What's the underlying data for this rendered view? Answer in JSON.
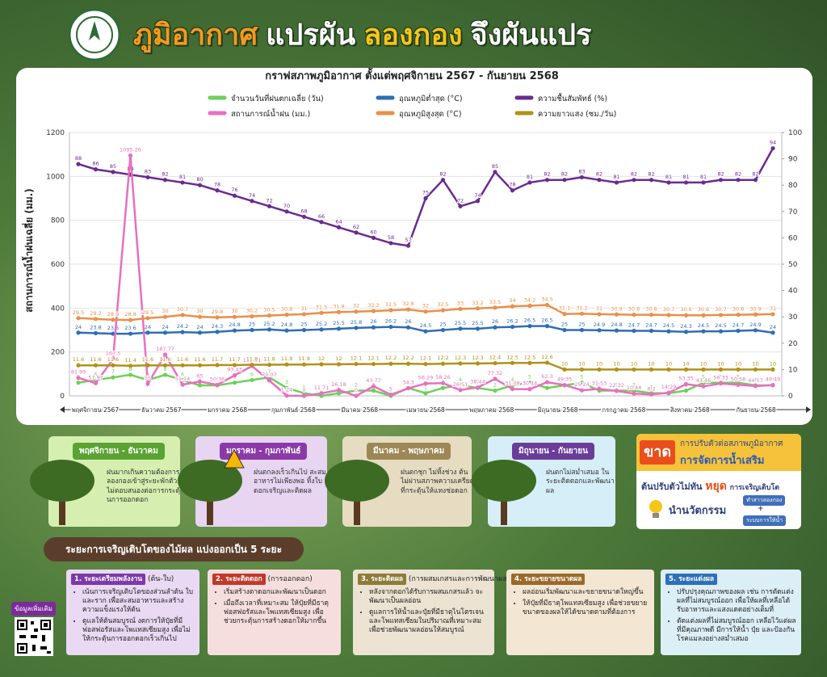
{
  "header": {
    "title_parts": [
      "ภูมิอากาศ",
      "แปรผัน",
      "ลองกอง",
      "จึงผันแปร"
    ]
  },
  "chart_data": {
    "type": "line",
    "title": "กราฟสภาพภูมิอากาศ ตั้งแต่พฤศจิกายน 2567 - กันยายน 2568",
    "ylabel": "สถานการณ์น้ำฝนเฉลี่ย (มม.)",
    "ylim": [
      0,
      1200
    ],
    "yticks": [
      0,
      200,
      400,
      600,
      800,
      1000,
      1200
    ],
    "y2lim": [
      0,
      100
    ],
    "y2ticks": [
      0,
      10,
      20,
      30,
      40,
      50,
      60,
      70,
      80,
      90,
      100
    ],
    "grid": true,
    "months": [
      "พฤศจิกายน 2567",
      "ธันวาคม 2567",
      "มกราคม 2568",
      "กุมภาพันธ์ 2568",
      "มีนาคม 2568",
      "เมษายน 2568",
      "พฤษภาคม 2568",
      "มิถุนายน 2568",
      "กรกฎาคม 2568",
      "สิงหาคม 2568",
      "กันยายน 2568"
    ],
    "series": [
      {
        "name": "จำนวนวันที่ฝนตกเฉลี่ย (วัน)",
        "color": "#6fcf5a",
        "axis": "y2",
        "values": [
          5,
          6,
          7,
          8,
          6,
          8,
          6,
          4,
          4,
          5,
          6,
          7,
          3,
          1,
          0,
          1,
          2,
          2,
          0,
          3,
          1,
          3,
          4,
          3,
          2,
          4,
          5,
          3,
          4,
          5,
          2,
          2,
          2,
          1,
          1,
          2,
          5,
          5,
          5,
          4,
          4
        ]
      },
      {
        "name": "อุณหภูมิต่ำสุด (°C)",
        "color": "#2f6db5",
        "axis": "y2",
        "values": [
          24,
          23.8,
          23.6,
          23.6,
          24,
          24,
          24.2,
          24,
          24.3,
          24.8,
          25,
          25.2,
          24.8,
          25,
          25.2,
          25.5,
          25.8,
          26,
          26.2,
          26,
          24.5,
          25,
          25.5,
          25.5,
          26,
          26.2,
          26.5,
          26.5,
          25,
          25,
          24.9,
          24.8,
          24.7,
          24.7,
          24.5,
          24.3,
          24.5,
          24.5,
          24.7,
          24.9,
          24
        ]
      },
      {
        "name": "ความชื้นสัมพัทธ์ (%)",
        "color": "#6a2b8f",
        "axis": "y2",
        "values": [
          88,
          86,
          85,
          84,
          83,
          82,
          81,
          80,
          78,
          76,
          74,
          72,
          70,
          68,
          66,
          64,
          62,
          60,
          58,
          57,
          75,
          82,
          72,
          74,
          85,
          78,
          81,
          82,
          82,
          83,
          82,
          81,
          82,
          82,
          81,
          81,
          81,
          82,
          82,
          82,
          94
        ]
      },
      {
        "name": "สถานการณ์น้ำฝน (มม.)",
        "color": "#e86fc0",
        "axis": "y",
        "values": [
          81.99,
          57.97,
          167.5,
          1095.26,
          55,
          187.77,
          51.14,
          65,
          50.36,
          93.43,
          135.81,
          70.07,
          1.24,
          0,
          11.71,
          26.18,
          0,
          43.77,
          5,
          34.3,
          56.29,
          58.26,
          26.51,
          38.44,
          77.32,
          31.08,
          30.44,
          62.3,
          49.35,
          25.24,
          31.53,
          22.32,
          10.44,
          6.2,
          14.29,
          53.35,
          43.46,
          56.33,
          50.58,
          44.57,
          49.49
        ]
      },
      {
        "name": "อุณหภูมิสูงสุด (°C)",
        "color": "#e8904a",
        "axis": "y2",
        "values": [
          29.5,
          29.2,
          28.9,
          28.8,
          29.5,
          30,
          30.7,
          30,
          29.8,
          30,
          30.2,
          30.5,
          30.8,
          31,
          31.5,
          31.8,
          32,
          32.2,
          32.5,
          32.8,
          32,
          32.5,
          33,
          33.2,
          33.5,
          34,
          34.2,
          34.5,
          31.1,
          31.2,
          31,
          30.9,
          30.8,
          30.8,
          30.7,
          30.6,
          30.6,
          30.7,
          30.8,
          30.9,
          31
        ]
      },
      {
        "name": "ความยาวแสง (ชม./วัน)",
        "color": "#b0921a",
        "axis": "y2",
        "values": [
          11.6,
          11.6,
          11.6,
          11.4,
          11.6,
          11.6,
          11.6,
          11.6,
          11.7,
          11.7,
          11.8,
          11.8,
          11.9,
          11.9,
          12,
          12,
          12.1,
          12.1,
          12.2,
          12.2,
          12.1,
          12.2,
          12.3,
          12.3,
          12.4,
          12.5,
          12.5,
          12.6,
          10,
          10,
          10,
          10,
          10,
          10,
          10,
          10,
          10,
          10,
          10,
          10,
          10
        ]
      }
    ]
  },
  "seasons": [
    {
      "title": "พฤศจิกายน - ธันวาคม",
      "text": "ฝนมากเกินความต้องการ ลองกองเข้าสู่ระยะพักตัว ไม่ตอบสนองต่อการกระตุ้นการออกดอก"
    },
    {
      "title": "มกราคม - กุมภาพันธ์",
      "text": "ฝนตกลงเร็วเกินไป สะสมอาหารไม่เพียงพอ ทิ้งใบดอกเจริญและติดผล"
    },
    {
      "title": "มีนาคม - พฤษภาคม",
      "text": "ฝนตกชุก ไม่ทิ้งช่วง ต้นไม่ผ่านสภาพความเครียดที่กระตุ้นให้แทงช่อดอก"
    },
    {
      "title": "มิถุนายน - กันยายน",
      "text": "ฝนตกไม่สม่ำเสมอ ในระยะติดดอกและพัฒนาผล"
    }
  ],
  "side_box": {
    "lack": "ขาด",
    "line1": "การปรับตัวต่อสภาพภูมิอากาศ",
    "line2": "การจัดการน้ำเสริม",
    "line3a": "ต้นปรับตัวไม่ทัน",
    "stop": "หยุด",
    "line3b": "การเจริญเติบโต",
    "innovation": "นำนวัตกรรม",
    "tag1": "ทำสาวลองกอง",
    "plus": "+",
    "tag2": "ระบบการให้น้ำ"
  },
  "stages_title": "ระยะการเจริญเติบโตของไม้ผล แบ่งออกเป็น 5 ระยะ",
  "more_info": "ข้อมูลเพิ่มเติม",
  "stages": [
    {
      "title": "1. ระยะเตรียมพลังงาน",
      "sub": "(ต้น-ใบ)",
      "bullets": [
        "เน้นการเจริญเติบโตของส่วนลำต้น ใบ และราก เพื่อสะสมอาหารและสร้างความแข็งแรงให้ต้น",
        "ดูแลให้ต้นสมบูรณ์ งดการให้ปุ๋ยที่มีฟอสฟอรัสและโพแทสเซียมสูง เพื่อไม่ให้กระตุ้นการออกดอกเร็วเกินไป"
      ]
    },
    {
      "title": "2. ระยะติดดอก",
      "sub": "(การออกดอก)",
      "bullets": [
        "เริ่มสร้างตาดอกและพัฒนาเป็นดอก",
        "เมื่อถึงเวลาที่เหมาะสม ให้ปุ๋ยที่มีธาตุฟอสฟอรัสและโพแทสเซียมสูง เพื่อช่วยกระตุ้นการสร้างดอกให้มากขึ้น"
      ]
    },
    {
      "title": "3. ระยะติดผล",
      "sub": "(การผสมเกสรและการพัฒนาผลอ่อน)",
      "bullets": [
        "หลังจากดอกได้รับการผสมเกสรแล้ว จะพัฒนาเป็นผลอ่อน",
        "ดูแลการให้น้ำและปุ๋ยที่มีธาตุไนโตรเจนและโพแทสเซียมในปริมาณที่เหมาะสม เพื่อช่วยพัฒนาผลอ่อนให้สมบูรณ์"
      ]
    },
    {
      "title": "4. ระยะขยายขนาดผล",
      "sub": "",
      "bullets": [
        "ผลอ่อนเริ่มพัฒนาและขยายขนาดใหญ่ขึ้น",
        "ให้ปุ๋ยที่มีธาตุโพแทสเซียมสูง เพื่อช่วยขยายขนาดของผลให้ได้ขนาดตามที่ต้องการ"
      ]
    },
    {
      "title": "5. ระยะแต่งผล",
      "sub": "",
      "bullets": [
        "ปรับปรุงคุณภาพของผล เช่น การตัดแต่งผลที่ไม่สมบูรณ์ออก เพื่อให้ผลที่เหลือได้รับอาหารและแสงแดดอย่างเต็มที่",
        "ตัดแต่งผลที่ไม่สมบูรณ์ออก เหลือไว้แต่ผลที่มีคุณภาพดี มีการให้น้ำ ปุ๋ย และป้องกันโรคแมลงอย่างสม่ำเสมอ"
      ]
    }
  ]
}
